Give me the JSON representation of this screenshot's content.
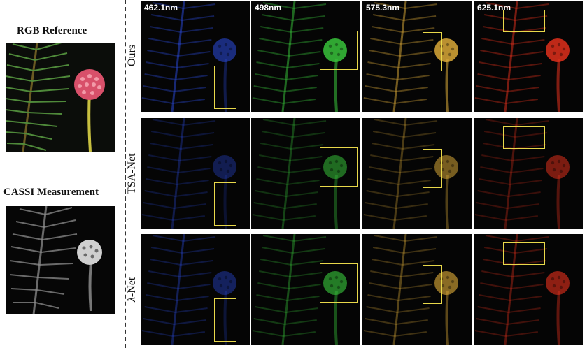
{
  "left_panel": {
    "rgb_title": "RGB Reference",
    "cassi_title": "CASSI Measurement"
  },
  "columns": [
    "462.1nm",
    "498nm",
    "575.3nm",
    "625.1nm"
  ],
  "rows": [
    {
      "label": "Ours"
    },
    {
      "label": "TSA-Net"
    },
    {
      "label": "λ-Net"
    }
  ],
  "colors": {
    "band_462": "#2a49d8",
    "band_498": "#38c23a",
    "band_575": "#d9a838",
    "band_625": "#e0301c",
    "highlight_box": "#e8d84a",
    "rgb_flower": "#d8506a",
    "rgb_needles": "#3e7a32"
  }
}
